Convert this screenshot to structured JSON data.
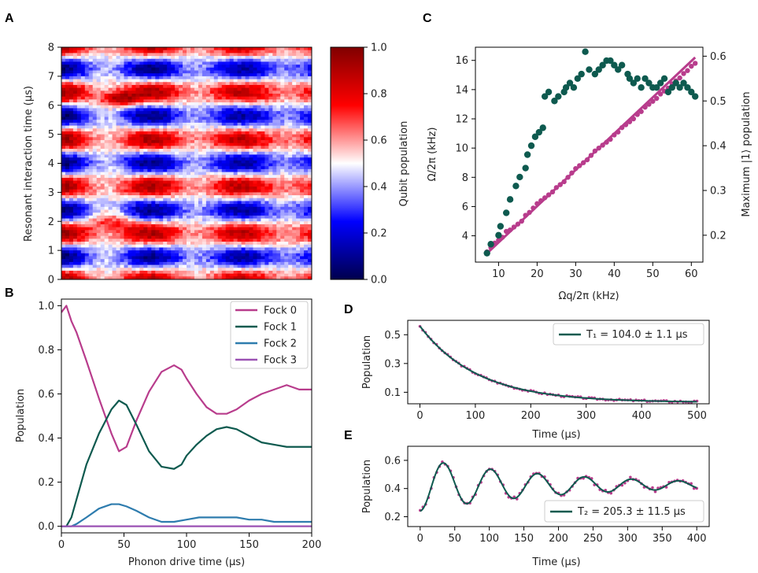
{
  "colors": {
    "magenta": "#b83c8c",
    "darkgreen": "#0e5a4f",
    "blue": "#2e7cae",
    "purple": "#9b52b4",
    "axis": "#000000"
  },
  "panel_labels": [
    "A",
    "B",
    "C",
    "D",
    "E"
  ],
  "chart_data": [
    {
      "id": "A",
      "type": "heatmap",
      "title": "",
      "xlabel": "",
      "ylabel": "Resonant interaction time (μs)",
      "yticks": [
        "0",
        "1",
        "2",
        "3",
        "4",
        "5",
        "6",
        "7",
        "8"
      ],
      "ylim": [
        0,
        8
      ],
      "colorbar": {
        "label": "Qubit population",
        "ticks": [
          "0.0",
          "0.2",
          "0.4",
          "0.6",
          "0.8",
          "1.0"
        ],
        "range": [
          0,
          1
        ],
        "colormap": "seismic"
      }
    },
    {
      "id": "B",
      "type": "line",
      "xlabel": "Phonon drive time (μs)",
      "ylabel": "Population",
      "xlim": [
        0,
        200
      ],
      "ylim": [
        -0.03,
        1.03
      ],
      "xticks": [
        "0",
        "50",
        "100",
        "150",
        "200"
      ],
      "yticks": [
        "0.0",
        "0.2",
        "0.4",
        "0.6",
        "0.8",
        "1.0"
      ],
      "legend_position": "top-right",
      "series": [
        {
          "name": "Fock 0",
          "color": "#b83c8c",
          "x": [
            0,
            4,
            8,
            12,
            20,
            30,
            40,
            46,
            52,
            60,
            70,
            80,
            90,
            96,
            100,
            108,
            116,
            124,
            132,
            140,
            150,
            160,
            170,
            180,
            190,
            200
          ],
          "y": [
            0.97,
            1.0,
            0.93,
            0.88,
            0.75,
            0.58,
            0.42,
            0.34,
            0.36,
            0.48,
            0.61,
            0.7,
            0.73,
            0.71,
            0.67,
            0.6,
            0.54,
            0.51,
            0.51,
            0.53,
            0.57,
            0.6,
            0.62,
            0.64,
            0.62,
            0.62
          ]
        },
        {
          "name": "Fock 1",
          "color": "#0e5a4f",
          "x": [
            0,
            4,
            8,
            12,
            20,
            30,
            40,
            46,
            52,
            60,
            70,
            80,
            90,
            96,
            100,
            108,
            116,
            124,
            132,
            140,
            150,
            160,
            170,
            180,
            190,
            200
          ],
          "y": [
            0.0,
            0.0,
            0.04,
            0.12,
            0.28,
            0.42,
            0.53,
            0.57,
            0.55,
            0.46,
            0.34,
            0.27,
            0.26,
            0.28,
            0.32,
            0.37,
            0.41,
            0.44,
            0.45,
            0.44,
            0.41,
            0.38,
            0.37,
            0.36,
            0.36,
            0.36
          ]
        },
        {
          "name": "Fock 2",
          "color": "#2e7cae",
          "x": [
            0,
            4,
            8,
            12,
            20,
            30,
            40,
            46,
            52,
            60,
            70,
            80,
            90,
            100,
            110,
            120,
            130,
            140,
            150,
            160,
            170,
            180,
            190,
            200
          ],
          "y": [
            0.0,
            0.0,
            0.0,
            0.01,
            0.04,
            0.08,
            0.1,
            0.1,
            0.09,
            0.07,
            0.04,
            0.02,
            0.02,
            0.03,
            0.04,
            0.04,
            0.04,
            0.04,
            0.03,
            0.03,
            0.02,
            0.02,
            0.02,
            0.02
          ]
        },
        {
          "name": "Fock 3",
          "color": "#9b52b4",
          "x": [
            0,
            50,
            100,
            150,
            200
          ],
          "y": [
            0.0,
            0.0,
            0.0,
            0.0,
            0.0
          ]
        }
      ]
    },
    {
      "id": "C",
      "type": "scatter",
      "xlabel": "Ωq/2π (kHz)",
      "ylabel_left": "Ω/2π  (kHz)",
      "ylabel_right": "Maximum |1⟩ population",
      "xlim": [
        4,
        63
      ],
      "ylim_left": [
        2.2,
        16.9
      ],
      "ylim_right": [
        0.14,
        0.62
      ],
      "xticks": [
        "10",
        "20",
        "30",
        "40",
        "50",
        "60"
      ],
      "yticks_left": [
        "4",
        "6",
        "8",
        "10",
        "12",
        "14",
        "16"
      ],
      "yticks_right": [
        "0.2",
        "0.3",
        "0.4",
        "0.5",
        "0.6"
      ],
      "fit_line": {
        "x": [
          7,
          61
        ],
        "y": [
          2.8,
          16.2
        ]
      },
      "series": [
        {
          "name": "Ω/2π",
          "axis": "left",
          "color": "#b83c8c",
          "x": [
            7,
            8,
            9,
            10,
            11,
            12,
            13,
            14,
            15,
            16,
            17,
            18,
            19,
            20,
            21,
            22,
            23,
            24,
            25,
            26,
            27,
            28,
            29,
            30,
            31,
            32,
            33,
            34,
            35,
            36,
            37,
            38,
            39,
            40,
            41,
            42,
            43,
            44,
            45,
            46,
            47,
            48,
            49,
            50,
            51,
            52,
            53,
            54,
            55,
            56,
            57,
            58,
            59,
            60,
            61
          ],
          "y": [
            2.9,
            3.2,
            3.5,
            3.7,
            3.9,
            4.3,
            4.4,
            4.6,
            4.8,
            5.0,
            5.4,
            5.6,
            5.9,
            6.2,
            6.4,
            6.6,
            6.8,
            7.0,
            7.3,
            7.5,
            7.7,
            8.0,
            8.3,
            8.6,
            8.8,
            9.0,
            9.2,
            9.5,
            9.8,
            10.0,
            10.2,
            10.4,
            10.6,
            10.9,
            11.1,
            11.4,
            11.6,
            11.8,
            12.0,
            12.3,
            12.5,
            12.8,
            13.0,
            13.2,
            13.4,
            13.7,
            13.9,
            14.1,
            14.4,
            14.6,
            14.8,
            15.1,
            15.3,
            15.6,
            15.8
          ]
        },
        {
          "name": "Maximum |1⟩ population",
          "axis": "right",
          "color": "#0e5a4f",
          "x": [
            7,
            8,
            10,
            10.5,
            12,
            13,
            14.5,
            15.5,
            17,
            17.5,
            18.5,
            19.5,
            20.5,
            21.5,
            22,
            23,
            24.5,
            25.5,
            27,
            27.5,
            28.5,
            29.5,
            30.5,
            31.5,
            32.5,
            33.5,
            35,
            36,
            37,
            38,
            39,
            40,
            41,
            42,
            43.5,
            44,
            45,
            46,
            47,
            48,
            49,
            50,
            51,
            52,
            53,
            54,
            55,
            56,
            57,
            58,
            59,
            60,
            61
          ],
          "y": [
            0.16,
            0.18,
            0.2,
            0.22,
            0.25,
            0.28,
            0.31,
            0.33,
            0.35,
            0.38,
            0.4,
            0.42,
            0.43,
            0.44,
            0.51,
            0.52,
            0.5,
            0.51,
            0.52,
            0.53,
            0.54,
            0.53,
            0.55,
            0.56,
            0.61,
            0.57,
            0.56,
            0.57,
            0.58,
            0.59,
            0.59,
            0.58,
            0.57,
            0.58,
            0.56,
            0.55,
            0.54,
            0.55,
            0.53,
            0.55,
            0.54,
            0.53,
            0.53,
            0.54,
            0.55,
            0.52,
            0.53,
            0.54,
            0.53,
            0.54,
            0.53,
            0.52,
            0.51
          ]
        }
      ]
    },
    {
      "id": "D",
      "type": "line",
      "xlabel": "Time (μs)",
      "ylabel": "Population",
      "xlim": [
        -22,
        522
      ],
      "ylim": [
        0.02,
        0.6
      ],
      "xticks": [
        "0",
        "100",
        "200",
        "300",
        "400",
        "500"
      ],
      "yticks": [
        "0.1",
        "0.3",
        "0.5"
      ],
      "legend_label": "T₁ = 104.0 ± 1.1 μs",
      "legend_position": "top-right",
      "fit": {
        "model": "exp_decay",
        "offset": 0.03,
        "amplitude": 0.53,
        "T1": 104.0,
        "x_range": [
          0,
          500
        ]
      },
      "markers": {
        "color": "#b83c8c",
        "every": 5,
        "x_range": [
          0,
          500
        ]
      }
    },
    {
      "id": "E",
      "type": "line",
      "xlabel": "Time (μs)",
      "ylabel": "Population",
      "xlim": [
        -18,
        418
      ],
      "ylim": [
        0.13,
        0.7
      ],
      "xticks": [
        "0",
        "50",
        "100",
        "150",
        "200",
        "250",
        "300",
        "350",
        "400"
      ],
      "yticks": [
        "0.2",
        "0.4",
        "0.6"
      ],
      "legend_label": "T₂ = 205.3 ± 11.5 μs",
      "legend_position": "bottom-right",
      "fit": {
        "model": "damped_cosine",
        "offset": 0.425,
        "amplitude": 0.205,
        "period": 68,
        "T2": 205.3,
        "phase_deg": 180,
        "x_range": [
          0,
          400
        ]
      },
      "markers": {
        "color": "#b83c8c",
        "every": 4,
        "x_range": [
          0,
          400
        ]
      }
    }
  ]
}
